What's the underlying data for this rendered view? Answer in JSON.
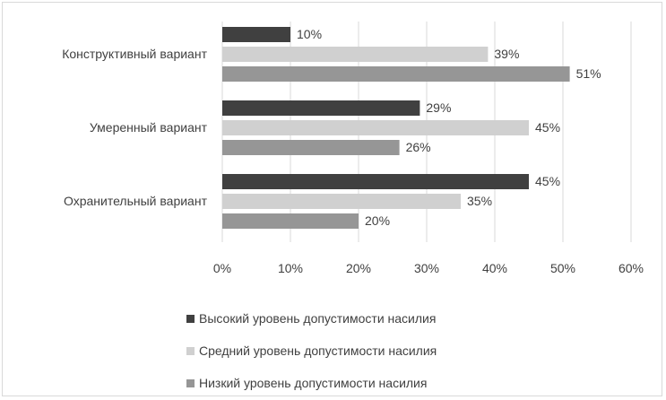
{
  "chart_data": {
    "type": "bar",
    "orientation": "horizontal",
    "categories": [
      "Конструктивный вариант",
      "Умеренный вариант",
      "Охранительный вариант"
    ],
    "series": [
      {
        "name": "Высокий уровень допустимости насилия",
        "values": [
          10,
          29,
          45
        ],
        "labels": [
          "10%",
          "29%",
          "45%"
        ],
        "color": "#404040"
      },
      {
        "name": "Средний уровень допустимости насилия",
        "values": [
          39,
          45,
          35
        ],
        "labels": [
          "39%",
          "45%",
          "35%"
        ],
        "color": "#d0d0d0"
      },
      {
        "name": "Низкий уровень допустимости насилия",
        "values": [
          51,
          26,
          20
        ],
        "labels": [
          "51%",
          "26%",
          "20%"
        ],
        "color": "#969696"
      }
    ],
    "x_ticks": [
      "0%",
      "10%",
      "20%",
      "30%",
      "40%",
      "50%",
      "60%"
    ],
    "xlim": [
      0,
      60
    ],
    "grid": "vertical",
    "legend_position": "bottom"
  }
}
